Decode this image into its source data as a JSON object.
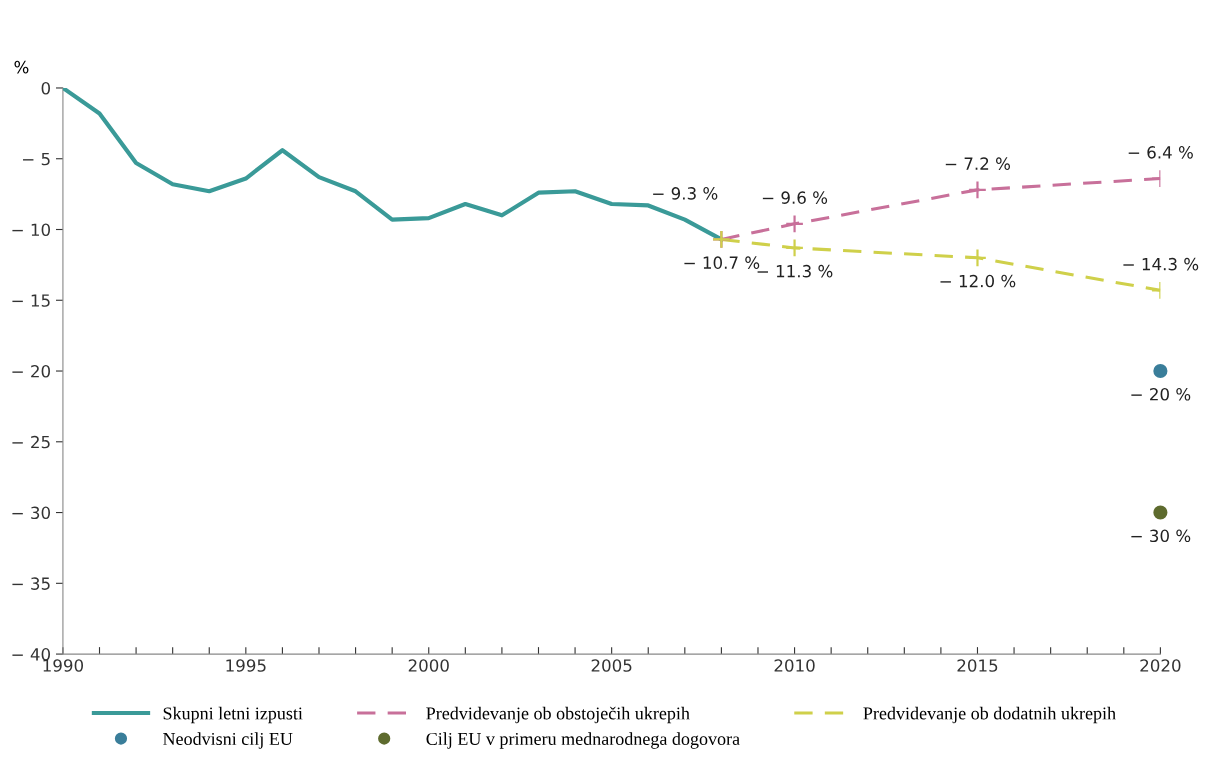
{
  "chart_data": {
    "type": "line",
    "ylabel": "%",
    "x": [
      1990,
      1991,
      1992,
      1993,
      1994,
      1995,
      1996,
      1997,
      1998,
      1999,
      2000,
      2001,
      2002,
      2003,
      2004,
      2005,
      2006,
      2007,
      2008
    ],
    "series": [
      {
        "name": "Skupni letni izpusti",
        "color": "#3a9a98",
        "line_style": "solid",
        "values": [
          0,
          -1.8,
          -5.3,
          -6.8,
          -7.3,
          -6.4,
          -4.4,
          -6.3,
          -7.3,
          -9.3,
          -9.2,
          -8.2,
          -9.0,
          -7.4,
          -7.3,
          -8.2,
          -8.3,
          -9.3,
          -10.7
        ],
        "value_labels": [
          null,
          null,
          null,
          null,
          null,
          null,
          null,
          null,
          null,
          null,
          null,
          null,
          null,
          null,
          null,
          null,
          null,
          "− 9.3 %",
          "− 10.7 %"
        ]
      },
      {
        "name": "Neodvisni cilj EU",
        "type": "scatter",
        "marker": "circle",
        "color": "#3a7e9a",
        "x": [
          2020
        ],
        "values": [
          -20
        ],
        "value_labels": [
          "− 20 %"
        ]
      },
      {
        "name": "Predvidevanje ob obstoječih ukrepih",
        "color": "#c8709a",
        "line_style": "dashed",
        "marker": "cross",
        "x": [
          2008,
          2010,
          2015,
          2020
        ],
        "values": [
          -10.7,
          -9.6,
          -7.2,
          -6.4
        ],
        "value_labels": [
          null,
          "− 9.6 %",
          "− 7.2 %",
          "− 6.4 %"
        ]
      },
      {
        "name": "Cilj EU v primeru mednarodnega dogovora",
        "type": "scatter",
        "marker": "circle",
        "color": "#5e6b2e",
        "x": [
          2020
        ],
        "values": [
          -30
        ],
        "value_labels": [
          "− 30 %"
        ]
      },
      {
        "name": "Predvidevanje ob dodatnih ukrepih",
        "color": "#cfd04a",
        "line_style": "dashed",
        "marker": "cross",
        "x": [
          2008,
          2010,
          2015,
          2020
        ],
        "values": [
          -10.7,
          -11.3,
          -12.0,
          -14.3
        ],
        "value_labels": [
          null,
          "− 11.3 %",
          "− 12.0 %",
          "− 14.3 %"
        ]
      }
    ],
    "xlim": [
      1990,
      2020
    ],
    "xticks": [
      1990,
      {
        "value": 1991,
        "label": null
      },
      {
        "value": 1992,
        "label": null
      },
      {
        "value": 1993,
        "label": null
      },
      {
        "value": 1994,
        "label": null
      },
      1995,
      {
        "value": 1996,
        "label": null
      },
      {
        "value": 1997,
        "label": null
      },
      {
        "value": 1998,
        "label": null
      },
      {
        "value": 1999,
        "label": null
      },
      2000,
      {
        "value": 2001,
        "label": null
      },
      {
        "value": 2002,
        "label": null
      },
      {
        "value": 2003,
        "label": null
      },
      {
        "value": 2004,
        "label": null
      },
      2005,
      {
        "value": 2006,
        "label": null
      },
      {
        "value": 2007,
        "label": null
      },
      {
        "value": 2008,
        "label": null
      },
      {
        "value": 2009,
        "label": null
      },
      2010,
      {
        "value": 2011,
        "label": null
      },
      {
        "value": 2012,
        "label": null
      },
      {
        "value": 2013,
        "label": null
      },
      {
        "value": 2014,
        "label": null
      },
      2015,
      {
        "value": 2016,
        "label": null
      },
      {
        "value": 2017,
        "label": null
      },
      {
        "value": 2018,
        "label": null
      },
      {
        "value": 2019,
        "label": null
      },
      2020
    ],
    "ylim": [
      -40,
      0
    ],
    "yticks": [
      0,
      {
        "value": -5,
        "label": "− 5"
      },
      {
        "value": -10,
        "label": "− 10"
      },
      {
        "value": -15,
        "label": "− 15"
      },
      {
        "value": -20,
        "label": "− 20"
      },
      {
        "value": -25,
        "label": "− 25"
      },
      {
        "value": -30,
        "label": "− 30"
      },
      {
        "value": -35,
        "label": "− 35"
      },
      {
        "value": -40,
        "label": "− 40"
      }
    ],
    "grid": false,
    "legend": "bottom"
  }
}
